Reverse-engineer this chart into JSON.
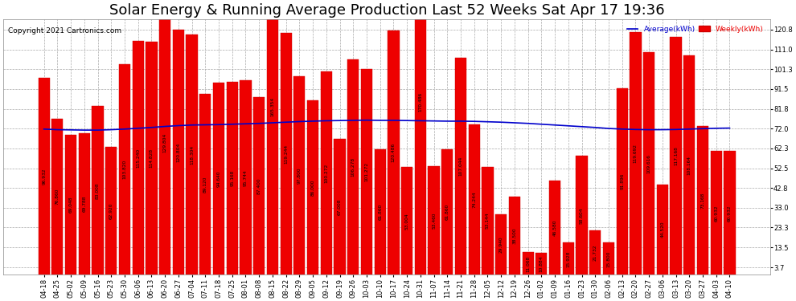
{
  "title": "Solar Energy & Running Average Production Last 52 Weeks Sat Apr 17 19:36",
  "copyright": "Copyright 2021 Cartronics.com",
  "legend_avg": "Average(kWh)",
  "legend_weekly": "Weekly(kWh)",
  "background_color": "#ffffff",
  "bar_color": "#ee0000",
  "bar_edge_color": "#cc0000",
  "avg_line_color": "#0000cc",
  "grid_color": "#aaaaaa",
  "categories": [
    "04-18",
    "04-25",
    "05-02",
    "05-09",
    "05-16",
    "05-23",
    "05-30",
    "06-06",
    "06-13",
    "06-20",
    "06-27",
    "07-04",
    "07-11",
    "07-18",
    "07-25",
    "08-01",
    "08-08",
    "08-15",
    "08-22",
    "08-29",
    "09-05",
    "09-12",
    "09-19",
    "09-26",
    "10-03",
    "10-10",
    "10-17",
    "10-24",
    "10-31",
    "11-07",
    "11-14",
    "11-21",
    "11-28",
    "12-05",
    "12-12",
    "12-19",
    "12-26",
    "01-02",
    "01-09",
    "01-16",
    "01-23",
    "01-30",
    "02-06",
    "02-13",
    "02-20",
    "02-27",
    "03-06",
    "03-13",
    "03-20",
    "03-27",
    "04-03",
    "04-10"
  ],
  "weekly_values": [
    96.932,
    76.86,
    69.048,
    69.788,
    83.008,
    62.92,
    103.82,
    115.24,
    114.828,
    129.804,
    120.804,
    118.304,
    89.12,
    94.64,
    95.168,
    95.744,
    87.4,
    165.354,
    119.244,
    97.8,
    86.0,
    100.272,
    67.008,
    106.278,
    101.272,
    61.86,
    120.486,
    53.004,
    170.486,
    53.46,
    61.86,
    107.044,
    74.244,
    53.144,
    29.94,
    38.5,
    11.068,
    10.884,
    46.58,
    15.928,
    58.604,
    21.732,
    15.8,
    91.896,
    119.692,
    109.616,
    44.52,
    117.168,
    108.164,
    73.168,
    60.932,
    60.932
  ],
  "avg_values": [
    71.8,
    71.5,
    71.4,
    71.3,
    71.3,
    71.5,
    71.8,
    72.2,
    72.6,
    73.1,
    73.5,
    73.8,
    73.9,
    74.0,
    74.2,
    74.4,
    74.6,
    74.9,
    75.2,
    75.5,
    75.7,
    75.9,
    76.0,
    76.1,
    76.2,
    76.1,
    76.1,
    76.0,
    75.9,
    75.8,
    75.7,
    75.7,
    75.6,
    75.4,
    75.2,
    74.9,
    74.6,
    74.2,
    73.8,
    73.4,
    73.0,
    72.6,
    72.1,
    71.8,
    71.6,
    71.5,
    71.5,
    71.6,
    71.8,
    72.0,
    72.2,
    72.3
  ],
  "yticks": [
    3.7,
    13.5,
    23.3,
    33.0,
    42.8,
    52.5,
    62.3,
    72.0,
    81.8,
    91.5,
    101.3,
    111.0,
    120.8
  ],
  "ylim": [
    0,
    126
  ],
  "title_fontsize": 13,
  "tick_fontsize": 6.0,
  "value_fontsize": 4.2,
  "copyright_fontsize": 6.5
}
